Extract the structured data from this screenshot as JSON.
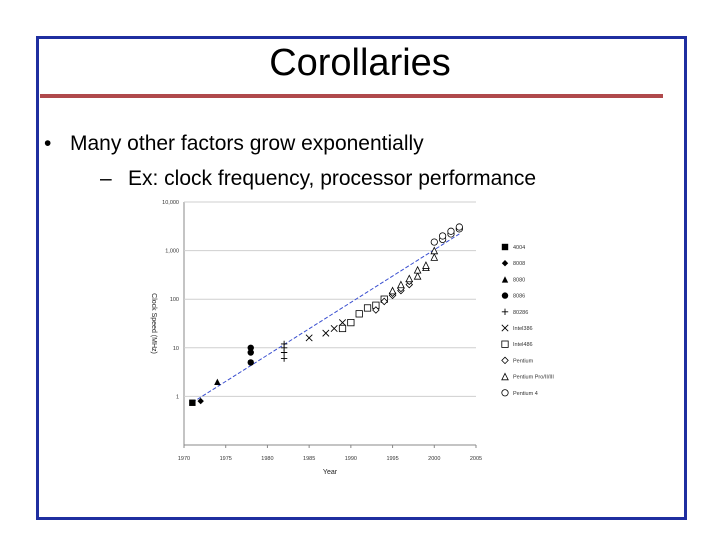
{
  "slide": {
    "title": "Corollaries",
    "bullet_symbol": "•",
    "bullet": "Many other factors grow exponentially",
    "sub_symbol": "–",
    "sub_bullet": "Ex: clock frequency, processor performance"
  },
  "colors": {
    "border": "#1f2ea0",
    "rule": "#b0494c",
    "trend": "#3a4fd0",
    "marker": "#000000"
  },
  "chart_data": {
    "type": "scatter",
    "xlabel": "Year",
    "ylabel": "Clock Speed (MHz)",
    "x_scale": "linear",
    "y_scale": "log",
    "xlim": [
      1970,
      2005
    ],
    "ylim": [
      0.1,
      10000
    ],
    "x_ticks": [
      "1970",
      "1975",
      "1980",
      "1985",
      "1990",
      "1995",
      "2000",
      "2005"
    ],
    "y_ticks": [
      "1",
      "10",
      "100",
      "1,000",
      "10,000"
    ],
    "legend_position": "right",
    "trendline": {
      "x": [
        1971,
        2003
      ],
      "y": [
        0.75,
        2200
      ]
    },
    "series": [
      {
        "name": "4004",
        "marker": "square",
        "points": [
          [
            1971,
            0.74
          ]
        ]
      },
      {
        "name": "8008",
        "marker": "diamond",
        "points": [
          [
            1972,
            0.8
          ]
        ]
      },
      {
        "name": "8080",
        "marker": "triangle",
        "points": [
          [
            1974,
            2
          ]
        ]
      },
      {
        "name": "8086",
        "marker": "circle",
        "points": [
          [
            1978,
            5
          ],
          [
            1978,
            8
          ],
          [
            1978,
            10
          ]
        ]
      },
      {
        "name": "80286",
        "marker": "plus",
        "points": [
          [
            1982,
            6
          ],
          [
            1982,
            8
          ],
          [
            1982,
            10
          ],
          [
            1982,
            12
          ]
        ]
      },
      {
        "name": "Intel386",
        "marker": "x",
        "points": [
          [
            1985,
            16
          ],
          [
            1987,
            20
          ],
          [
            1988,
            25
          ],
          [
            1989,
            33
          ]
        ]
      },
      {
        "name": "Intel486",
        "marker": "open-square",
        "points": [
          [
            1989,
            25
          ],
          [
            1990,
            33
          ],
          [
            1991,
            50
          ],
          [
            1992,
            66
          ],
          [
            1993,
            75
          ],
          [
            1994,
            100
          ]
        ]
      },
      {
        "name": "Pentium",
        "marker": "open-diamond",
        "points": [
          [
            1993,
            60
          ],
          [
            1994,
            90
          ],
          [
            1995,
            120
          ],
          [
            1995,
            133
          ],
          [
            1996,
            150
          ],
          [
            1996,
            166
          ],
          [
            1997,
            200
          ],
          [
            1997,
            233
          ]
        ]
      },
      {
        "name": "Pentium Pro/II/III",
        "marker": "open-triangle",
        "points": [
          [
            1995,
            150
          ],
          [
            1996,
            200
          ],
          [
            1997,
            266
          ],
          [
            1998,
            300
          ],
          [
            1998,
            400
          ],
          [
            1999,
            450
          ],
          [
            1999,
            500
          ],
          [
            2000,
            733
          ],
          [
            2000,
            1000
          ]
        ]
      },
      {
        "name": "Pentium 4",
        "marker": "open-circle",
        "points": [
          [
            2000,
            1500
          ],
          [
            2001,
            1700
          ],
          [
            2001,
            2000
          ],
          [
            2002,
            2200
          ],
          [
            2002,
            2500
          ],
          [
            2003,
            2800
          ],
          [
            2003,
            3060
          ]
        ]
      }
    ]
  }
}
